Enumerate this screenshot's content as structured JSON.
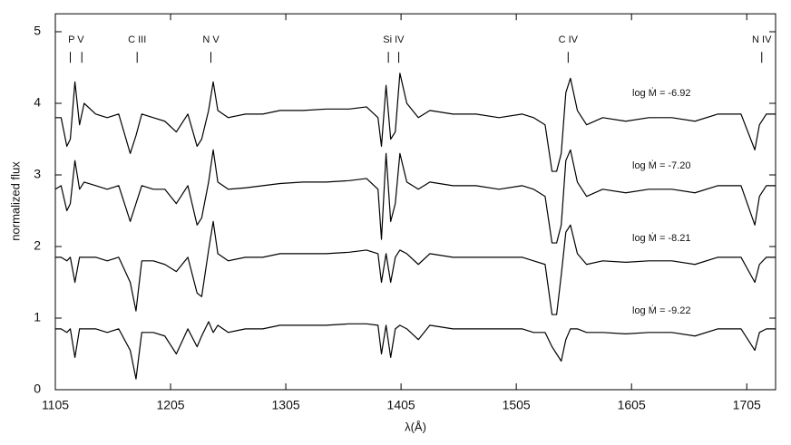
{
  "chart_data": {
    "type": "line",
    "x_label": "λ(Å)",
    "y_label": "normalized flux",
    "xlim": [
      1105,
      1730
    ],
    "xticks": [
      1105,
      1205,
      1305,
      1405,
      1505,
      1605,
      1705
    ],
    "ylim": [
      0,
      5.25
    ],
    "yticks": [
      0,
      1,
      2,
      3,
      4,
      5
    ],
    "x": [
      1105,
      1110,
      1115,
      1118,
      1122,
      1126,
      1130,
      1140,
      1150,
      1160,
      1170,
      1175,
      1180,
      1190,
      1200,
      1210,
      1220,
      1228,
      1232,
      1238,
      1242,
      1246,
      1255,
      1270,
      1285,
      1300,
      1320,
      1340,
      1360,
      1375,
      1385,
      1388,
      1392,
      1396,
      1400,
      1404,
      1410,
      1420,
      1430,
      1450,
      1470,
      1490,
      1510,
      1520,
      1530,
      1536,
      1540,
      1544,
      1548,
      1552,
      1558,
      1566,
      1580,
      1600,
      1620,
      1640,
      1660,
      1680,
      1700,
      1712,
      1716,
      1722,
      1730
    ],
    "series": [
      {
        "name": "log Ṁ = -6.92",
        "color": "#000000",
        "values": [
          3.8,
          3.8,
          3.4,
          3.5,
          4.3,
          3.7,
          4.0,
          3.85,
          3.8,
          3.85,
          3.3,
          3.55,
          3.85,
          3.8,
          3.75,
          3.6,
          3.85,
          3.4,
          3.5,
          3.9,
          4.3,
          3.9,
          3.8,
          3.85,
          3.85,
          3.9,
          3.9,
          3.92,
          3.92,
          3.95,
          3.8,
          3.4,
          4.25,
          3.5,
          3.6,
          4.42,
          4.0,
          3.8,
          3.9,
          3.85,
          3.85,
          3.8,
          3.85,
          3.8,
          3.7,
          3.05,
          3.05,
          3.3,
          4.15,
          4.35,
          3.9,
          3.7,
          3.8,
          3.75,
          3.8,
          3.8,
          3.75,
          3.85,
          3.85,
          3.35,
          3.7,
          3.85,
          3.85
        ]
      },
      {
        "name": "log Ṁ = -7.20",
        "color": "#000000",
        "values": [
          2.8,
          2.85,
          2.5,
          2.6,
          3.2,
          2.8,
          2.9,
          2.85,
          2.8,
          2.85,
          2.35,
          2.6,
          2.85,
          2.8,
          2.8,
          2.6,
          2.85,
          2.3,
          2.4,
          2.9,
          3.35,
          2.9,
          2.8,
          2.82,
          2.85,
          2.88,
          2.9,
          2.9,
          2.92,
          2.95,
          2.8,
          2.1,
          3.3,
          2.35,
          2.6,
          3.3,
          2.9,
          2.8,
          2.9,
          2.85,
          2.85,
          2.8,
          2.85,
          2.8,
          2.7,
          2.05,
          2.05,
          2.3,
          3.2,
          3.35,
          2.9,
          2.7,
          2.8,
          2.75,
          2.8,
          2.8,
          2.75,
          2.85,
          2.85,
          2.3,
          2.7,
          2.85,
          2.85
        ]
      },
      {
        "name": "log Ṁ = -8.21",
        "color": "#000000",
        "values": [
          1.85,
          1.85,
          1.8,
          1.85,
          1.5,
          1.85,
          1.85,
          1.85,
          1.8,
          1.85,
          1.5,
          1.1,
          1.8,
          1.8,
          1.75,
          1.65,
          1.85,
          1.35,
          1.3,
          1.95,
          2.35,
          1.9,
          1.8,
          1.85,
          1.85,
          1.9,
          1.9,
          1.9,
          1.92,
          1.95,
          1.9,
          1.5,
          1.9,
          1.5,
          1.85,
          1.95,
          1.9,
          1.75,
          1.9,
          1.85,
          1.85,
          1.85,
          1.85,
          1.8,
          1.75,
          1.05,
          1.05,
          1.6,
          2.2,
          2.3,
          1.9,
          1.75,
          1.8,
          1.78,
          1.8,
          1.8,
          1.75,
          1.85,
          1.85,
          1.5,
          1.75,
          1.85,
          1.85
        ]
      },
      {
        "name": "log Ṁ = -9.22",
        "color": "#000000",
        "values": [
          0.85,
          0.85,
          0.8,
          0.85,
          0.45,
          0.85,
          0.85,
          0.85,
          0.8,
          0.85,
          0.55,
          0.15,
          0.8,
          0.8,
          0.75,
          0.5,
          0.85,
          0.6,
          0.75,
          0.95,
          0.8,
          0.9,
          0.8,
          0.85,
          0.85,
          0.9,
          0.9,
          0.9,
          0.92,
          0.92,
          0.9,
          0.5,
          0.9,
          0.45,
          0.85,
          0.9,
          0.85,
          0.7,
          0.9,
          0.85,
          0.85,
          0.85,
          0.85,
          0.8,
          0.8,
          0.6,
          0.5,
          0.4,
          0.7,
          0.85,
          0.85,
          0.8,
          0.8,
          0.78,
          0.8,
          0.8,
          0.75,
          0.85,
          0.85,
          0.55,
          0.8,
          0.85,
          0.85
        ]
      }
    ],
    "annotations": [
      {
        "label": "P V",
        "x": [
          1118,
          1128
        ]
      },
      {
        "label": "C III",
        "x": [
          1176
        ]
      },
      {
        "label": "N V",
        "x": [
          1240
        ]
      },
      {
        "label": "Si IV",
        "x": [
          1394,
          1403
        ]
      },
      {
        "label": "C IV",
        "x": [
          1550
        ]
      },
      {
        "label": "N IV",
        "x": [
          1718
        ]
      }
    ]
  }
}
